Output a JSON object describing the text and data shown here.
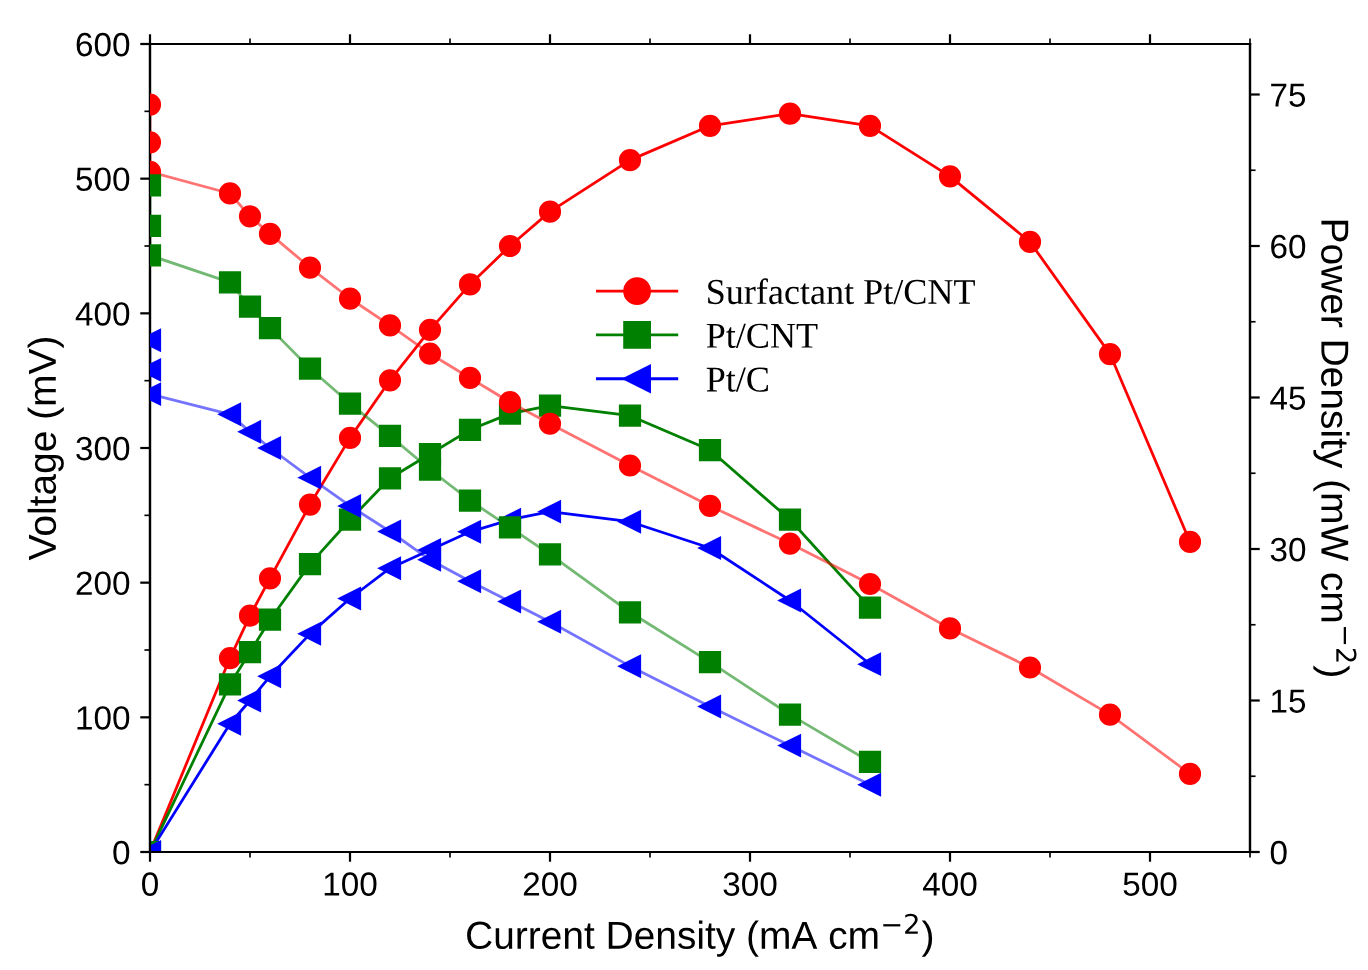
{
  "chart_data": {
    "type": "line",
    "xlabel": "Current Density (mA cm$^{−2}$)",
    "ylabel": "Voltage (mV)",
    "y2label": "Power Density (mW cm$^{−2}$)",
    "xlim": [
      0,
      550
    ],
    "xticks": [
      0,
      100,
      200,
      300,
      400,
      500
    ],
    "ylim": [
      0,
      600
    ],
    "yticks": [
      0,
      100,
      200,
      300,
      400,
      500,
      600
    ],
    "y2lim": [
      0,
      80
    ],
    "y2ticks": [
      0,
      15,
      30,
      45,
      60,
      75
    ],
    "legend": "top right",
    "grid": false,
    "series": [
      {
        "name": "Surfactant Pt/CNT",
        "color": "#ff0000",
        "marker": "circle",
        "x": [
          0,
          0,
          0,
          40,
          50,
          60,
          80,
          100,
          120,
          140,
          160,
          180,
          200,
          240,
          280,
          320,
          360,
          400,
          440,
          480,
          520
        ],
        "values": [
          555,
          527,
          505,
          489,
          472,
          459,
          434,
          411,
          391,
          370,
          352,
          334,
          318,
          287,
          257,
          229,
          199,
          166,
          137,
          102,
          58
        ]
      },
      {
        "name": "Pt/CNT",
        "color": "#008000",
        "marker": "square",
        "x": [
          0,
          0,
          0,
          40,
          50,
          60,
          80,
          100,
          120,
          140,
          160,
          180,
          200,
          240,
          280,
          320,
          360
        ],
        "values": [
          495,
          465,
          443,
          423,
          405,
          389,
          359,
          333,
          309,
          284,
          261,
          241,
          221,
          178,
          141,
          102,
          67
        ]
      },
      {
        "name": "Pt/C",
        "color": "#0000ff",
        "marker": "triangle",
        "x": [
          0,
          0,
          0,
          40,
          50,
          60,
          80,
          100,
          120,
          140,
          160,
          180,
          200,
          240,
          280,
          320,
          360
        ],
        "values": [
          380,
          358,
          340,
          325,
          312,
          300,
          278,
          257,
          238,
          217,
          201,
          186,
          171,
          138,
          108,
          79,
          50
        ]
      },
      {
        "color": "#ff0000",
        "marker": "circle",
        "axis": "y2",
        "x": [
          0,
          40,
          50,
          60,
          80,
          100,
          120,
          140,
          160,
          180,
          200,
          240,
          280,
          320,
          360,
          400,
          440,
          480,
          520
        ],
        "values": [
          0,
          19.2,
          23.4,
          27.1,
          34.4,
          41.0,
          46.7,
          51.7,
          56.2,
          60.0,
          63.4,
          68.5,
          71.9,
          73.1,
          71.9,
          66.9,
          60.4,
          49.3,
          30.7
        ]
      },
      {
        "color": "#008000",
        "marker": "square",
        "axis": "y2",
        "x": [
          0,
          40,
          50,
          60,
          80,
          100,
          120,
          140,
          160,
          180,
          200,
          240,
          280,
          320,
          360
        ],
        "values": [
          0,
          16.6,
          19.8,
          23.0,
          28.5,
          32.9,
          37.0,
          39.4,
          41.8,
          43.4,
          44.2,
          43.2,
          39.8,
          32.9,
          24.2
        ]
      },
      {
        "color": "#0000ff",
        "marker": "triangle",
        "axis": "y2",
        "x": [
          0,
          40,
          50,
          60,
          80,
          100,
          120,
          140,
          160,
          180,
          200,
          240,
          280,
          320,
          360
        ],
        "values": [
          0,
          12.7,
          15.0,
          17.4,
          21.6,
          25.1,
          28.1,
          29.9,
          31.7,
          32.9,
          33.7,
          32.7,
          30.1,
          24.9,
          18.6
        ]
      }
    ]
  }
}
